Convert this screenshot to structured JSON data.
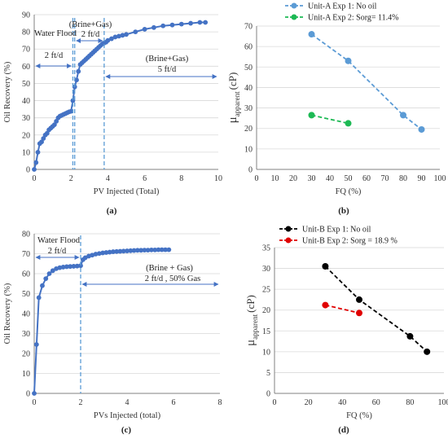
{
  "colors": {
    "blue": "#4472C4",
    "lightblue": "#5B9BD5",
    "green": "#1DB954",
    "black": "#000000",
    "red": "#E00000",
    "grid": "#D9D9D9",
    "axis": "#808080",
    "arrow": "#4472C4"
  },
  "chart_data": [
    {
      "id": "a",
      "type": "line",
      "panel_label": "(a)",
      "xlabel": "PV Injected (Total)",
      "ylabel": "Oil Recovery (%)",
      "xlim": [
        0,
        10
      ],
      "ylim": [
        0,
        90
      ],
      "xticks": [
        0,
        2,
        4,
        6,
        8,
        10
      ],
      "yticks": [
        0,
        10,
        20,
        30,
        40,
        50,
        60,
        70,
        80,
        90
      ],
      "grid": "horizontal",
      "series": [
        {
          "x": [
            0,
            0.1,
            0.2,
            0.3,
            0.4,
            0.5,
            0.6,
            0.7,
            0.8,
            0.9,
            1.0,
            1.1,
            1.2,
            1.3,
            1.4,
            1.5,
            1.6,
            1.7,
            1.8,
            1.9,
            2.0,
            2.1,
            2.2,
            2.3,
            2.4,
            2.5,
            2.6,
            2.7,
            2.8,
            2.9,
            3.0,
            3.1,
            3.2,
            3.3,
            3.4,
            3.5,
            3.6,
            3.7,
            3.8,
            3.9,
            4.0,
            4.2,
            4.4,
            4.6,
            4.8,
            5.0,
            5.5,
            6.0,
            6.5,
            7.0,
            7.5,
            8.0,
            8.5,
            9.0,
            9.3
          ],
          "y": [
            0,
            4,
            10,
            15,
            16,
            18,
            20,
            21,
            23,
            24,
            25,
            26,
            28,
            30,
            31,
            31.5,
            32,
            32.5,
            33,
            33.5,
            33.8,
            40,
            48,
            52,
            57,
            61,
            62,
            63,
            64,
            65,
            66,
            67,
            68,
            69,
            70,
            71,
            72,
            73,
            73.5,
            74,
            75,
            76,
            77,
            77.5,
            78,
            78.5,
            80,
            81.5,
            82.5,
            83.5,
            84,
            84.5,
            85,
            85.5,
            85.5
          ]
        }
      ],
      "vlines": [
        2.1,
        2.2,
        3.8
      ],
      "annotations": {
        "waterflood_label": "Water Flood",
        "waterflood_rate": "2 ft/d",
        "bg1_label": "(Brine+Gas)",
        "bg1_rate": "2 ft/d",
        "bg2_label": "(Brine+Gas)",
        "bg2_rate": "5 ft/d"
      }
    },
    {
      "id": "b",
      "type": "scatter",
      "panel_label": "(b)",
      "xlabel": "FQ (%)",
      "ylabel": "μ",
      "ylabel_sub": "apparent",
      "ylabel_unit": "(cP)",
      "xlim": [
        0,
        100
      ],
      "ylim": [
        0,
        70
      ],
      "xticks": [
        0,
        10,
        20,
        30,
        40,
        50,
        60,
        70,
        80,
        90,
        100
      ],
      "yticks": [
        0,
        10,
        20,
        30,
        40,
        50,
        60,
        70
      ],
      "grid": "horizontal",
      "series": [
        {
          "name": "Unit-A Exp 1: No oil",
          "x": [
            30,
            50,
            80,
            90
          ],
          "y": [
            66,
            53,
            26.5,
            19.5
          ]
        },
        {
          "name": "Unit-A Exp 2: Sorg= 11.4%",
          "x": [
            30,
            50
          ],
          "y": [
            26.5,
            22.5
          ]
        }
      ]
    },
    {
      "id": "c",
      "type": "line",
      "panel_label": "(c)",
      "xlabel": "PVs Injected (total)",
      "ylabel": "Oil Recovery (%)",
      "xlim": [
        0,
        8
      ],
      "ylim": [
        0,
        80
      ],
      "xticks": [
        0,
        2,
        4,
        6,
        8
      ],
      "yticks": [
        0,
        10,
        20,
        30,
        40,
        50,
        60,
        70,
        80
      ],
      "grid": "horizontal",
      "series": [
        {
          "x": [
            0,
            0.1,
            0.2,
            0.35,
            0.5,
            0.65,
            0.8,
            0.95,
            1.1,
            1.25,
            1.4,
            1.55,
            1.7,
            1.85,
            2.0,
            2.1,
            2.2,
            2.35,
            2.5,
            2.65,
            2.8,
            2.95,
            3.1,
            3.25,
            3.4,
            3.55,
            3.7,
            3.85,
            4.0,
            4.15,
            4.3,
            4.45,
            4.6,
            4.75,
            4.9,
            5.05,
            5.2,
            5.35,
            5.5,
            5.65,
            5.8
          ],
          "y": [
            0,
            24.5,
            48,
            54,
            57.5,
            60,
            61.5,
            62.5,
            63,
            63.3,
            63.5,
            63.6,
            63.7,
            63.8,
            64,
            67,
            68,
            68.8,
            69.3,
            69.8,
            70.1,
            70.4,
            70.6,
            70.8,
            71,
            71.1,
            71.2,
            71.3,
            71.4,
            71.5,
            71.6,
            71.7,
            71.7,
            71.8,
            71.8,
            71.9,
            71.9,
            72,
            72,
            72,
            72
          ]
        }
      ],
      "vlines": [
        2.0
      ],
      "annotations": {
        "waterflood_label": "Water Flood",
        "waterflood_rate": "2 ft/d",
        "bg_label": "(Brine + Gas)",
        "bg_rate": "2 ft/d , 50% Gas"
      }
    },
    {
      "id": "d",
      "type": "scatter",
      "panel_label": "(d)",
      "xlabel": "FQ (%)",
      "ylabel": "μ",
      "ylabel_sub": "apparent",
      "ylabel_unit": "(cP)",
      "xlim": [
        0,
        100
      ],
      "ylim": [
        0,
        35
      ],
      "xticks": [
        0,
        20,
        40,
        60,
        80,
        100
      ],
      "yticks": [
        0,
        5,
        10,
        15,
        20,
        25,
        30,
        35
      ],
      "grid": "horizontal",
      "series": [
        {
          "name": "Unit-B Exp 1: No oil",
          "x": [
            30,
            50,
            80,
            90
          ],
          "y": [
            30.5,
            22.5,
            13.7,
            10
          ]
        },
        {
          "name": "Unit-B Exp 2: Sorg = 18.9 %",
          "x": [
            30,
            50
          ],
          "y": [
            21.2,
            19.3
          ]
        }
      ]
    }
  ]
}
